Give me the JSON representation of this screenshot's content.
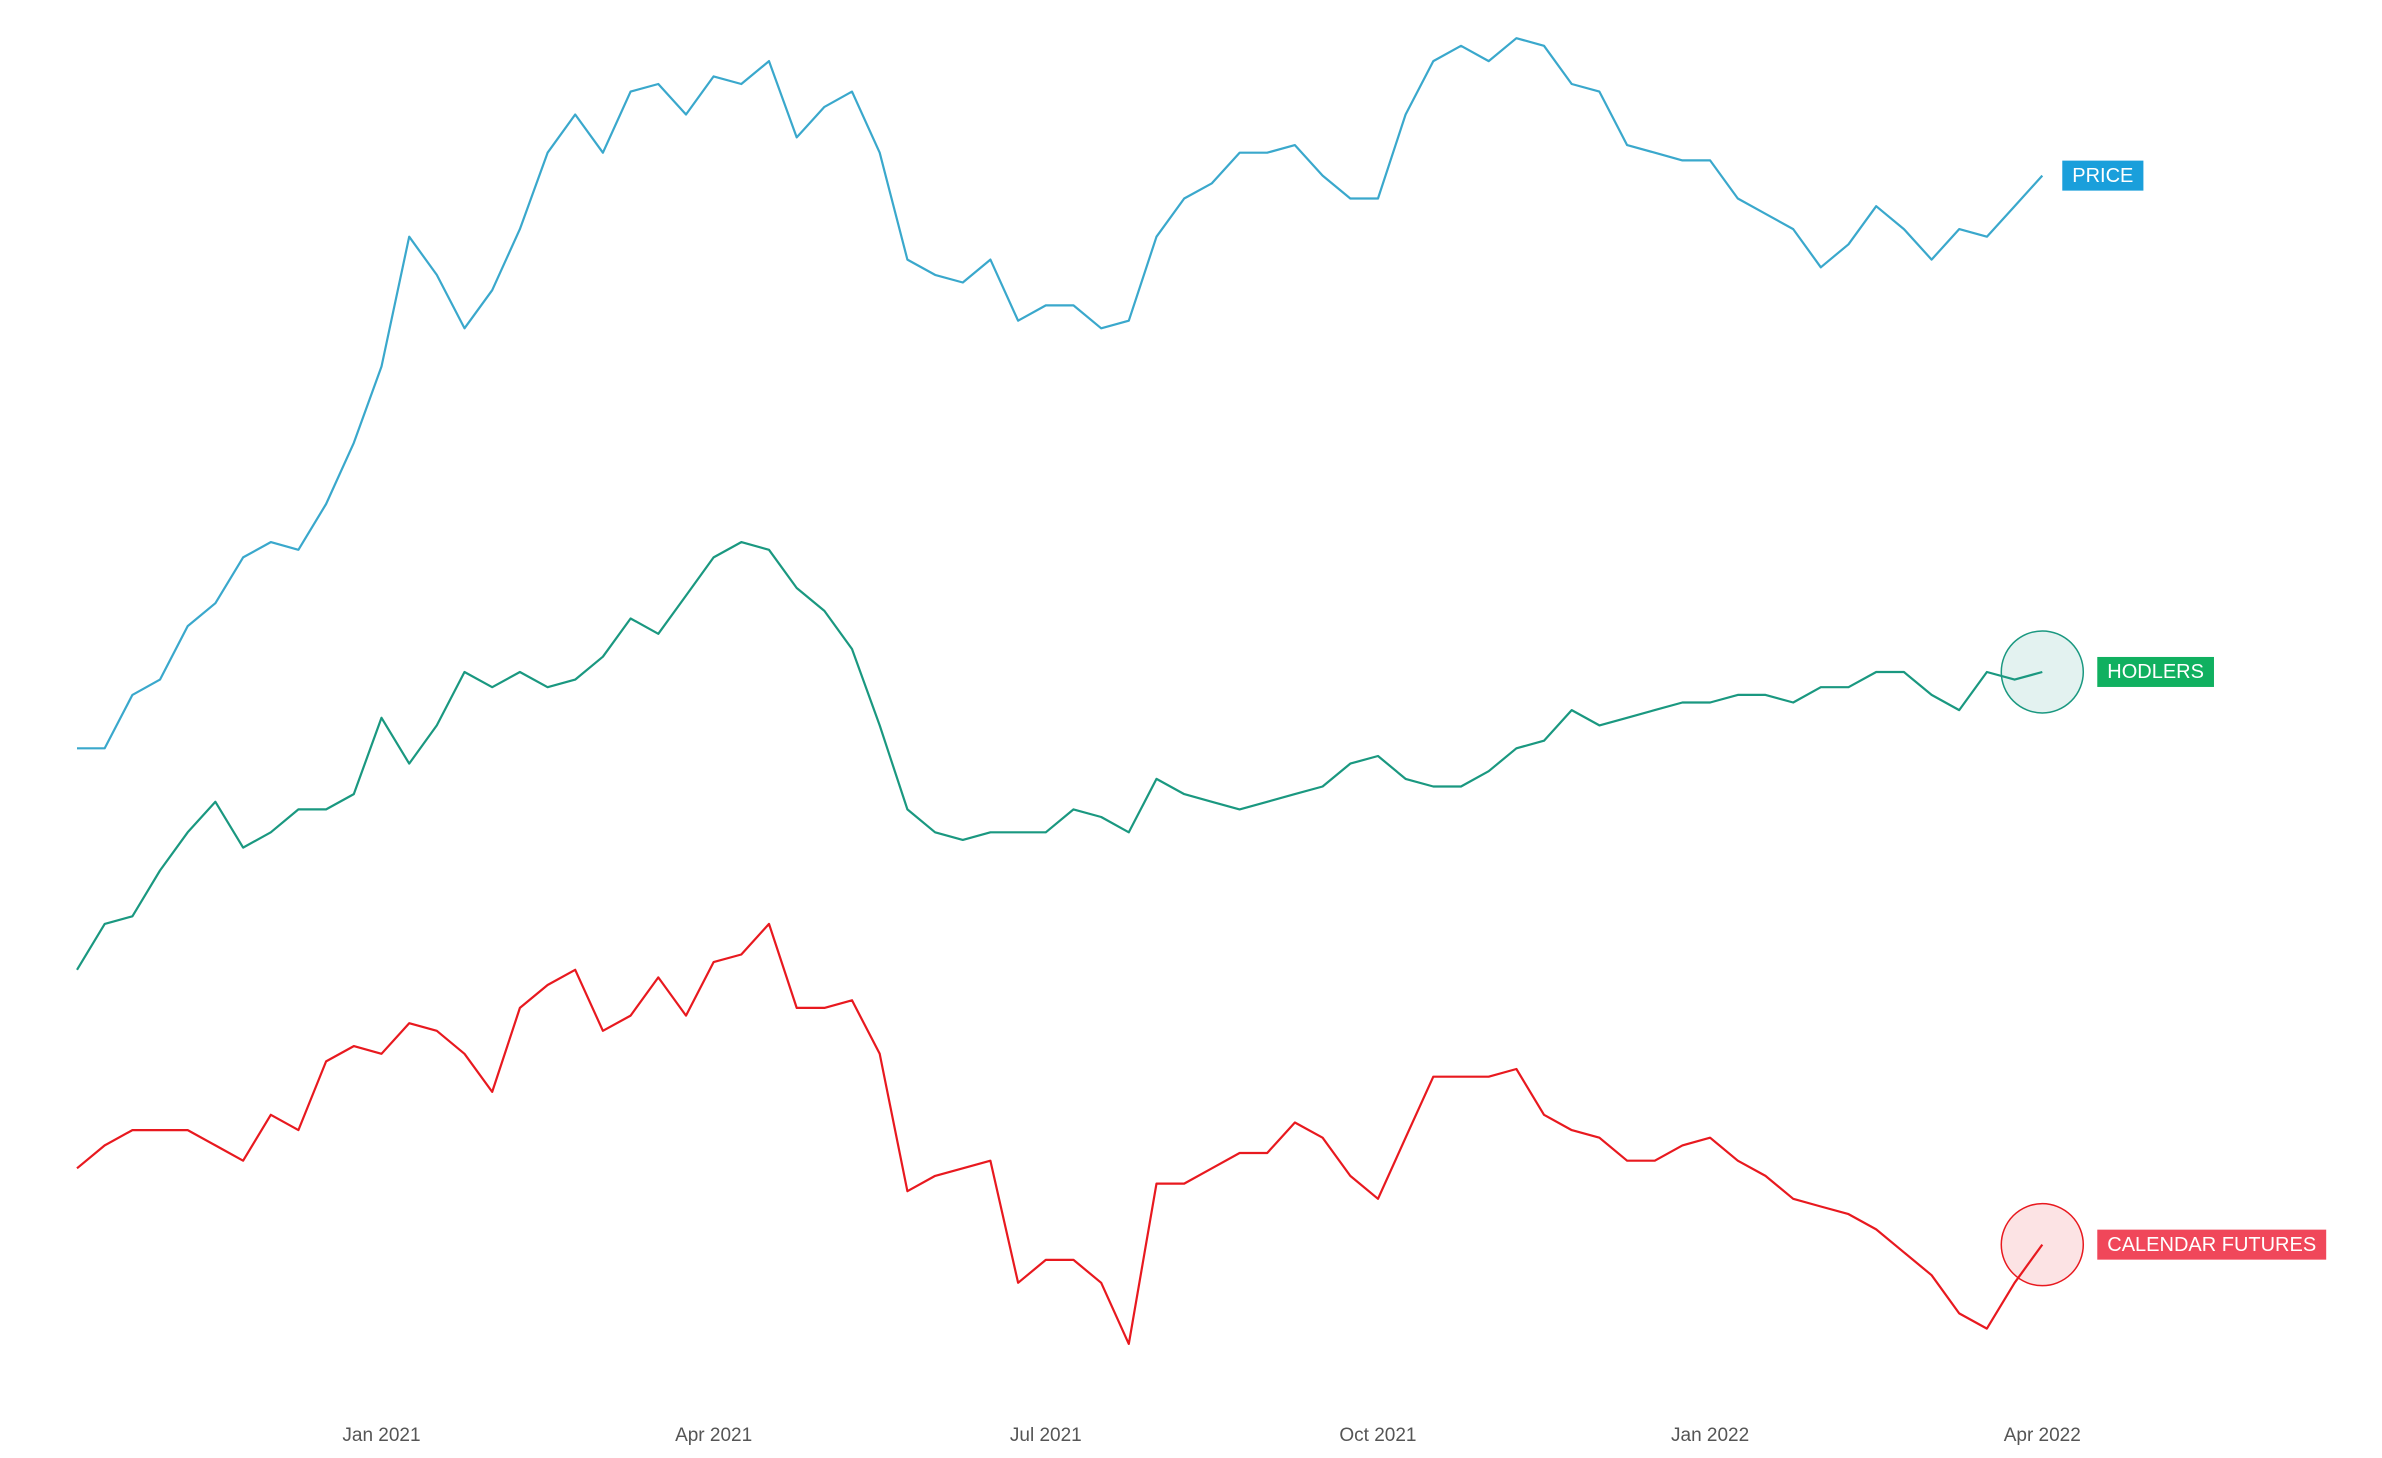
{
  "chart_data": {
    "type": "line",
    "categories": [
      null,
      null,
      null,
      null,
      null,
      null,
      null,
      null,
      null,
      null,
      null,
      "Jan 2021",
      null,
      null,
      null,
      null,
      null,
      null,
      null,
      null,
      null,
      null,
      null,
      "Apr 2021",
      null,
      null,
      null,
      null,
      null,
      null,
      null,
      null,
      null,
      null,
      null,
      "Jul 2021",
      null,
      null,
      null,
      null,
      null,
      null,
      null,
      null,
      null,
      null,
      null,
      "Oct 2021",
      null,
      null,
      null,
      null,
      null,
      null,
      null,
      null,
      null,
      null,
      null,
      "Jan 2022",
      null,
      null,
      null,
      null,
      null,
      null,
      null,
      null,
      null,
      null,
      null,
      "Apr 2022"
    ],
    "ylim": [
      0,
      920
    ],
    "series": [
      {
        "name": "PRICE",
        "color": "#3aa8cc",
        "label_color": "#1a9fdb",
        "highlight": false,
        "values": [
          430,
          430,
          465,
          475,
          510,
          525,
          555,
          565,
          560,
          590,
          630,
          680,
          765,
          740,
          705,
          730,
          770,
          820,
          845,
          820,
          860,
          865,
          845,
          870,
          865,
          880,
          830,
          850,
          860,
          820,
          750,
          740,
          735,
          750,
          710,
          720,
          720,
          705,
          710,
          765,
          790,
          800,
          820,
          820,
          825,
          805,
          790,
          790,
          845,
          880,
          890,
          880,
          895,
          890,
          865,
          860,
          825,
          820,
          815,
          815,
          790,
          780,
          770,
          745,
          760,
          785,
          770,
          750,
          770,
          765,
          785,
          805
        ]
      },
      {
        "name": "HODLERS",
        "color": "#1a9880",
        "label_color": "#10b060",
        "highlight": true,
        "values": [
          285,
          315,
          320,
          350,
          375,
          395,
          365,
          375,
          390,
          390,
          400,
          450,
          420,
          445,
          480,
          470,
          480,
          470,
          475,
          490,
          515,
          505,
          530,
          555,
          565,
          560,
          535,
          520,
          495,
          445,
          390,
          375,
          370,
          375,
          375,
          375,
          390,
          385,
          375,
          410,
          400,
          395,
          390,
          395,
          400,
          405,
          420,
          425,
          410,
          405,
          405,
          415,
          430,
          435,
          455,
          445,
          450,
          455,
          460,
          460,
          465,
          465,
          460,
          470,
          470,
          480,
          480,
          465,
          455,
          480,
          475,
          480
        ]
      },
      {
        "name": "CALENDAR FUTURES",
        "color": "#e8191f",
        "label_color": "#f0475a",
        "highlight": true,
        "values": [
          155,
          170,
          180,
          180,
          180,
          170,
          160,
          190,
          180,
          225,
          235,
          230,
          250,
          245,
          230,
          205,
          260,
          275,
          285,
          245,
          255,
          280,
          255,
          290,
          295,
          315,
          260,
          260,
          265,
          230,
          140,
          150,
          155,
          160,
          80,
          95,
          95,
          80,
          40,
          145,
          145,
          155,
          165,
          165,
          185,
          175,
          150,
          135,
          175,
          215,
          215,
          215,
          220,
          190,
          180,
          175,
          160,
          160,
          170,
          175,
          160,
          150,
          135,
          130,
          125,
          115,
          100,
          85,
          60,
          50,
          80,
          105
        ]
      }
    ]
  }
}
